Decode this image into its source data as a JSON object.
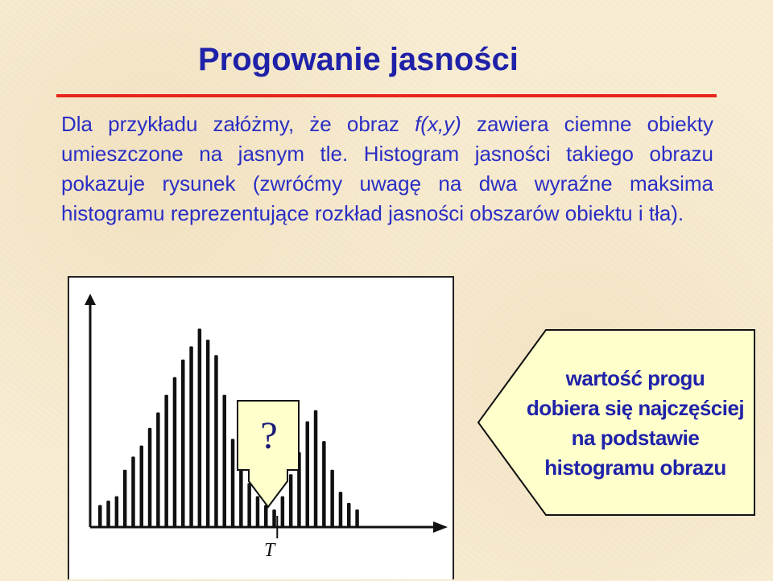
{
  "slide": {
    "title": "Progowanie jasności",
    "paragraph": {
      "part1": "Dla przykładu załóżmy, że obraz ",
      "function_name": "f(x,y)",
      "part2": " zawiera ciemne obiekty umieszczone na jasnym tle. Histogram jasności takiego obrazu pokazuje rysunek (zwróćmy uwagę na dwa wyraźne maksima histogramu reprezentujące rozkład jasności obszarów obiektu i tła)."
    },
    "callout": {
      "lines": [
        "wartość progu",
        "dobiera się najczęściej",
        "na podstawie",
        "histogramu obrazu"
      ]
    },
    "question_box": {
      "symbol": "?"
    },
    "threshold_label": "T"
  },
  "colors": {
    "title": "#1f22a8",
    "body_text": "#2a2ec4",
    "rule": "#e8241c",
    "callout_fill": "#ffffcc",
    "question_fill": "#ffffcc",
    "background": "#f8edd3"
  },
  "chart_data": {
    "type": "bar",
    "description_free": true,
    "values": [
      0.1,
      0.12,
      0.14,
      0.26,
      0.32,
      0.37,
      0.45,
      0.52,
      0.6,
      0.68,
      0.76,
      0.82,
      0.9,
      0.85,
      0.78,
      0.6,
      0.4,
      0.27,
      0.2,
      0.14,
      0.1,
      0.08,
      0.14,
      0.24,
      0.34,
      0.48,
      0.53,
      0.39,
      0.26,
      0.16,
      0.11,
      0.08
    ],
    "xlabel": "",
    "ylabel": "",
    "threshold_index": 21
  }
}
